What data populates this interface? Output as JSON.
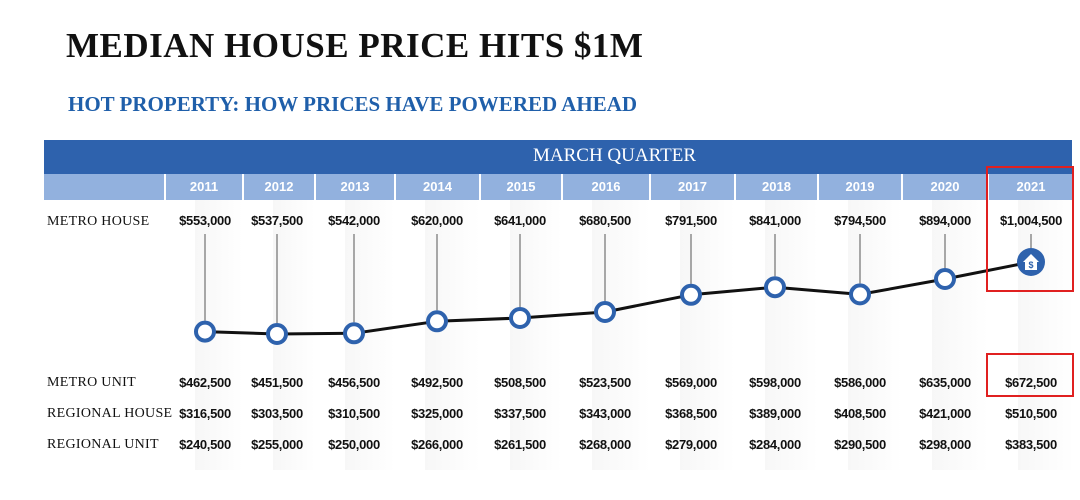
{
  "title": "MEDIAN HOUSE PRICE HITS $1M",
  "subtitle": "HOT PROPERTY: HOW PRICES HAVE POWERED AHEAD",
  "header": "MARCH QUARTER",
  "years": [
    "2011",
    "2012",
    "2013",
    "2014",
    "2015",
    "2016",
    "2017",
    "2018",
    "2019",
    "2020",
    "2021"
  ],
  "rows": {
    "metro_house": {
      "label": "METRO HOUSE",
      "values": [
        "$553,000",
        "$537,500",
        "$542,000",
        "$620,000",
        "$641,000",
        "$680,500",
        "$791,500",
        "$841,000",
        "$794,500",
        "$894,000",
        "$1,004,500"
      ]
    },
    "metro_unit": {
      "label": "METRO UNIT",
      "values": [
        "$462,500",
        "$451,500",
        "$456,500",
        "$492,500",
        "$508,500",
        "$523,500",
        "$569,000",
        "$598,000",
        "$586,000",
        "$635,000",
        "$672,500"
      ]
    },
    "regional_house": {
      "label": "REGIONAL HOUSE",
      "values": [
        "$316,500",
        "$303,500",
        "$310,500",
        "$325,000",
        "$337,500",
        "$343,000",
        "$368,500",
        "$389,000",
        "$408,500",
        "$421,000",
        "$510,500"
      ]
    },
    "regional_unit": {
      "label": "REGIONAL UNIT",
      "values": [
        "$240,500",
        "$255,000",
        "$250,000",
        "$266,000",
        "$261,500",
        "$268,000",
        "$279,000",
        "$284,000",
        "$290,500",
        "$298,000",
        "$383,500"
      ]
    }
  },
  "chart_data": {
    "type": "line",
    "title": "MEDIAN HOUSE PRICE HITS $1M",
    "subtitle": "HOT PROPERTY: HOW PRICES HAVE POWERED AHEAD",
    "x": [
      "2011",
      "2012",
      "2013",
      "2014",
      "2015",
      "2016",
      "2017",
      "2018",
      "2019",
      "2020",
      "2021"
    ],
    "series": [
      {
        "name": "METRO HOUSE",
        "values": [
          553000,
          537500,
          542000,
          620000,
          641000,
          680500,
          791500,
          841000,
          794500,
          894000,
          1004500
        ]
      }
    ],
    "xlabel": "",
    "ylabel": "",
    "ylim": [
      537500,
      1004500
    ],
    "grid": false,
    "highlight": "2021"
  },
  "colors": {
    "banner": "#2e62ad",
    "year_band": "#92b1de",
    "subtitle": "#1f5faa",
    "line": "#111111",
    "marker": "#2e62ad",
    "highlight_box": "#e02020"
  },
  "icons": {
    "last_point": "house-dollar-icon"
  }
}
